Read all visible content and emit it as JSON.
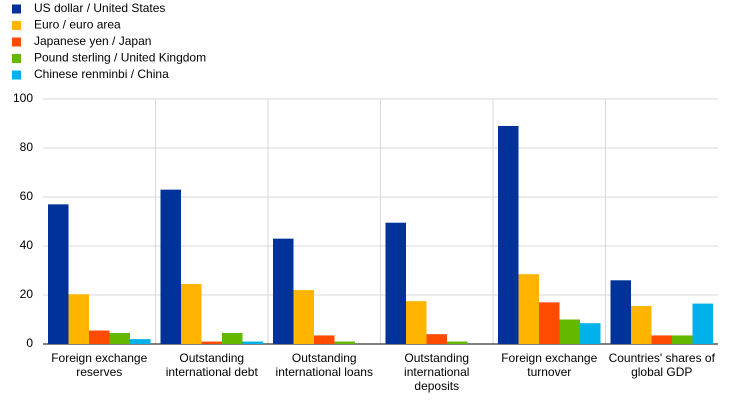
{
  "chart_data": {
    "type": "bar",
    "categories": [
      "Foreign exchange reserves",
      "Outstanding international debt",
      "Outstanding international loans",
      "Outstanding international deposits",
      "Foreign exchange turnover",
      "Countries' shares of global GDP"
    ],
    "series": [
      {
        "name": "US dollar / United States",
        "color": "#003299",
        "values": [
          57,
          63,
          43,
          49.5,
          89,
          26
        ]
      },
      {
        "name": "Euro / euro area",
        "color": "#ffb400",
        "values": [
          20.3,
          24.5,
          22,
          17.5,
          28.5,
          15.5
        ]
      },
      {
        "name": "Japanese  yen / Japan",
        "color": "#ff4b00",
        "values": [
          5.5,
          1,
          3.5,
          4,
          17,
          3.5
        ]
      },
      {
        "name": "Pound sterling / United Kingdom",
        "color": "#65b800",
        "values": [
          4.5,
          4.5,
          1,
          1,
          10,
          3.5
        ]
      },
      {
        "name": "Chinese renminbi / China",
        "color": "#00b1ea",
        "values": [
          2,
          1,
          0,
          0,
          8.5,
          16.5
        ]
      }
    ],
    "ylim": [
      0,
      100
    ],
    "yticks": [
      0,
      20,
      40,
      60,
      80,
      100
    ],
    "grid": true
  }
}
